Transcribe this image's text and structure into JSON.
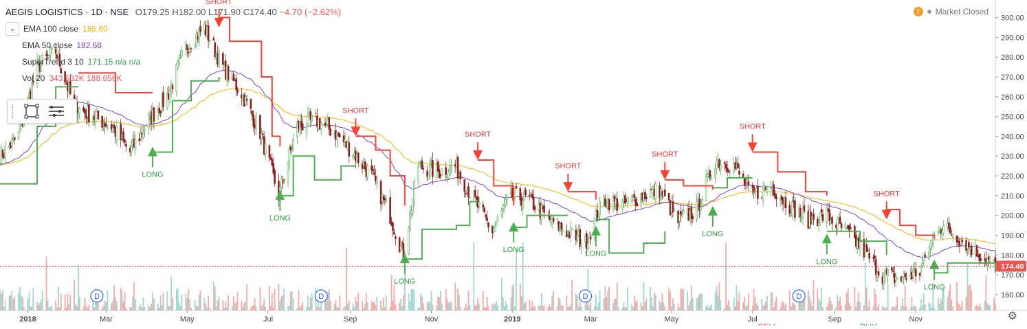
{
  "header": {
    "symbol": "AEGIS LOGISTICS · 1D · NSE",
    "ohlc": "O179.25 H182.00 L171.90 C174.40",
    "change": "−4.70 (−2.62%)",
    "market_status": "Market Closed"
  },
  "indicators": [
    {
      "name": "EMA 100 close",
      "value": "185.60",
      "color": "#f0b400"
    },
    {
      "name": "EMA 50 close",
      "value": "182.68",
      "color": "#7b44c8"
    },
    {
      "name": "SuperTrend 3 10",
      "value": "171.15  n/a  n/a",
      "color": "#2e9c40"
    },
    {
      "name": "Vol 20",
      "value": "343.532K  188.656K",
      "color": "#ef5350"
    }
  ],
  "icons": {
    "collapse": "chevron-down-icon",
    "rect": "rectangle-icon",
    "menu": "menu-icon",
    "settings": "gear-icon",
    "warning": "warning-icon"
  },
  "colors": {
    "up": "#26a69a",
    "down": "#ef5350",
    "candle_down": "#8b1f1f",
    "st_up": "#4caf50",
    "st_down": "#f44336",
    "ema100": "#f0b400",
    "ema50": "#7b44c8"
  },
  "chart_data": {
    "type": "candlestick",
    "y_axis": {
      "range": [
        152,
        304
      ],
      "ticks": [
        160,
        170,
        180,
        190,
        200,
        210,
        220,
        230,
        240,
        250,
        260,
        270,
        280,
        290,
        300
      ]
    },
    "x_axis": {
      "labels": [
        "2018",
        "Mar",
        "May",
        "Jul",
        "Sep",
        "Nov",
        "2019",
        "Mar",
        "May",
        "Jul",
        "Sep",
        "Nov"
      ],
      "range": [
        "2017-12-11",
        "2019-12-31"
      ]
    },
    "last_price": "174.40",
    "price_path": [
      [
        "2017-12-11",
        230
      ],
      [
        "2017-12-25",
        240
      ],
      [
        "2018-01-08",
        275
      ],
      [
        "2018-01-22",
        283
      ],
      [
        "2018-02-05",
        255
      ],
      [
        "2018-02-19",
        250
      ],
      [
        "2018-03-05",
        245
      ],
      [
        "2018-03-19",
        232
      ],
      [
        "2018-04-02",
        248
      ],
      [
        "2018-04-16",
        260
      ],
      [
        "2018-04-30",
        285
      ],
      [
        "2018-05-14",
        295
      ],
      [
        "2018-05-28",
        275
      ],
      [
        "2018-06-11",
        262
      ],
      [
        "2018-06-25",
        242
      ],
      [
        "2018-07-09",
        210
      ],
      [
        "2018-07-23",
        245
      ],
      [
        "2018-08-06",
        248
      ],
      [
        "2018-08-20",
        242
      ],
      [
        "2018-09-03",
        232
      ],
      [
        "2018-09-17",
        220
      ],
      [
        "2018-10-01",
        200
      ],
      [
        "2018-10-11",
        180
      ],
      [
        "2018-10-22",
        225
      ],
      [
        "2018-11-05",
        222
      ],
      [
        "2018-11-19",
        225
      ],
      [
        "2018-12-03",
        208
      ],
      [
        "2018-12-17",
        192
      ],
      [
        "2018-12-31",
        210
      ],
      [
        "2019-01-14",
        208
      ],
      [
        "2019-01-28",
        198
      ],
      [
        "2019-02-11",
        192
      ],
      [
        "2019-02-25",
        186
      ],
      [
        "2019-03-11",
        208
      ],
      [
        "2019-03-25",
        205
      ],
      [
        "2019-04-08",
        210
      ],
      [
        "2019-04-22",
        213
      ],
      [
        "2019-05-06",
        197
      ],
      [
        "2019-05-20",
        203
      ],
      [
        "2019-06-03",
        228
      ],
      [
        "2019-06-17",
        225
      ],
      [
        "2019-07-01",
        210
      ],
      [
        "2019-07-15",
        215
      ],
      [
        "2019-07-29",
        205
      ],
      [
        "2019-08-12",
        198
      ],
      [
        "2019-08-26",
        200
      ],
      [
        "2019-09-09",
        192
      ],
      [
        "2019-09-23",
        182
      ],
      [
        "2019-10-07",
        170
      ],
      [
        "2019-10-21",
        168
      ],
      [
        "2019-11-04",
        172
      ],
      [
        "2019-11-18",
        195
      ],
      [
        "2019-12-02",
        190
      ],
      [
        "2019-12-16",
        182
      ],
      [
        "2019-12-31",
        174.4
      ]
    ],
    "supertrend_up": [
      [
        [
          "2017-12-11",
          216
        ],
        [
          "2017-12-28",
          216
        ],
        [
          "2018-01-08",
          245
        ],
        [
          "2018-01-22",
          265
        ],
        [
          "2018-02-08",
          265
        ]
      ],
      [
        [
          "2018-04-05",
          232
        ],
        [
          "2018-04-20",
          258
        ],
        [
          "2018-05-04",
          268
        ],
        [
          "2018-05-25",
          270
        ]
      ],
      [
        [
          "2018-07-10",
          210
        ],
        [
          "2018-07-20",
          230
        ],
        [
          "2018-08-05",
          218
        ],
        [
          "2018-08-25",
          225
        ],
        [
          "2018-09-05",
          225
        ]
      ],
      [
        [
          "2018-10-12",
          178
        ],
        [
          "2018-10-25",
          193
        ],
        [
          "2018-11-20",
          195
        ],
        [
          "2018-11-30",
          207
        ],
        [
          "2018-12-06",
          207
        ]
      ],
      [
        [
          "2019-01-02",
          194
        ],
        [
          "2019-01-12",
          200
        ],
        [
          "2019-02-12",
          200
        ]
      ],
      [
        [
          "2019-03-05",
          198
        ],
        [
          "2019-03-15",
          181
        ],
        [
          "2019-04-10",
          186
        ],
        [
          "2019-04-26",
          192
        ]
      ],
      [
        [
          "2019-06-01",
          214
        ],
        [
          "2019-06-12",
          219
        ],
        [
          "2019-07-01",
          219
        ]
      ],
      [
        [
          "2019-08-26",
          192
        ],
        [
          "2019-09-20",
          187
        ],
        [
          "2019-10-10",
          180
        ]
      ],
      [
        [
          "2019-11-15",
          171
        ],
        [
          "2019-11-25",
          176
        ],
        [
          "2019-12-31",
          171
        ]
      ]
    ],
    "supertrend_down": [
      [
        [
          "2018-02-08",
          272
        ],
        [
          "2018-02-22",
          272
        ],
        [
          "2018-03-08",
          262
        ],
        [
          "2018-04-05",
          262
        ]
      ],
      [
        [
          "2018-05-25",
          300
        ],
        [
          "2018-06-02",
          288
        ],
        [
          "2018-06-16",
          288
        ],
        [
          "2018-06-26",
          270
        ],
        [
          "2018-07-04",
          240
        ],
        [
          "2018-07-10",
          235
        ]
      ],
      [
        [
          "2018-09-05",
          240
        ],
        [
          "2018-09-20",
          233
        ],
        [
          "2018-10-01",
          220
        ],
        [
          "2018-10-12",
          205
        ]
      ],
      [
        [
          "2018-12-06",
          228
        ],
        [
          "2018-12-18",
          215
        ],
        [
          "2019-01-02",
          205
        ]
      ],
      [
        [
          "2019-02-12",
          212
        ],
        [
          "2019-03-05",
          208
        ]
      ],
      [
        [
          "2019-04-26",
          218
        ],
        [
          "2019-05-10",
          215
        ],
        [
          "2019-06-01",
          213
        ]
      ],
      [
        [
          "2019-07-01",
          232
        ],
        [
          "2019-07-20",
          222
        ],
        [
          "2019-08-10",
          212
        ],
        [
          "2019-08-26",
          210
        ]
      ],
      [
        [
          "2019-10-10",
          203
        ],
        [
          "2019-10-20",
          195
        ],
        [
          "2019-11-01",
          190
        ],
        [
          "2019-11-15",
          188
        ]
      ]
    ],
    "signals": [
      {
        "type": "LONG",
        "date": "2018-04-05",
        "price": 232
      },
      {
        "type": "SHORT",
        "date": "2018-05-25",
        "price": 295
      },
      {
        "type": "LONG",
        "date": "2018-07-10",
        "price": 210
      },
      {
        "type": "SHORT",
        "date": "2018-09-05",
        "price": 240
      },
      {
        "type": "LONG",
        "date": "2018-10-12",
        "price": 178
      },
      {
        "type": "SHORT",
        "date": "2018-12-06",
        "price": 228
      },
      {
        "type": "LONG",
        "date": "2019-01-02",
        "price": 194
      },
      {
        "type": "SHORT",
        "date": "2019-02-12",
        "price": 212
      },
      {
        "type": "LONG",
        "date": "2019-03-05",
        "price": 192
      },
      {
        "type": "SHORT",
        "date": "2019-04-26",
        "price": 218
      },
      {
        "type": "LONG",
        "date": "2019-06-01",
        "price": 202
      },
      {
        "type": "SHORT",
        "date": "2019-07-01",
        "price": 232
      },
      {
        "type": "LONG",
        "date": "2019-08-26",
        "price": 188
      },
      {
        "type": "SHORT",
        "date": "2019-10-10",
        "price": 198
      },
      {
        "type": "LONG",
        "date": "2019-11-15",
        "price": 175
      }
    ],
    "signal_labels": {
      "LONG": "LONG",
      "SHORT": "SHORT"
    },
    "dividend_markers": [
      {
        "date": "2018-02-22",
        "label": "D"
      },
      {
        "date": "2018-08-10",
        "label": "D"
      },
      {
        "date": "2019-02-25",
        "label": "D"
      },
      {
        "date": "2019-08-05",
        "label": "D"
      }
    ],
    "partial_bottom_labels": [
      "SELL",
      "BUY"
    ]
  }
}
